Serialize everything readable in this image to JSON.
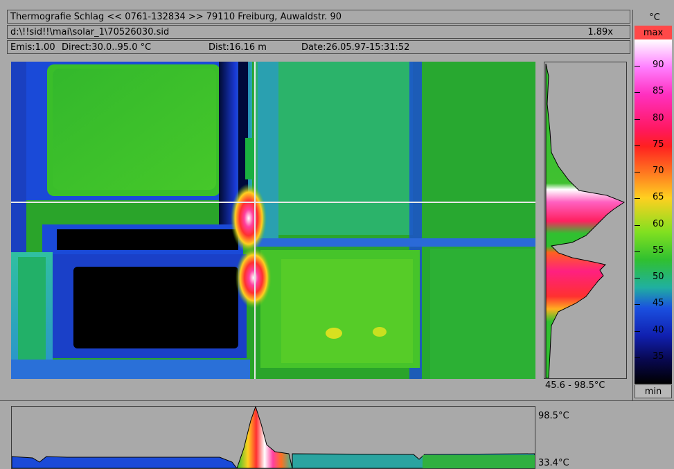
{
  "header": {
    "title": "Thermografie  Schlag  << 0761-132834 >>  79110  Freiburg, Auwaldstr. 90",
    "filepath": "d:\\!!sid!!\\mai\\solar_1\\70526030.sid",
    "zoom": "1.89x",
    "emissivity": "Emis:1.00",
    "direct": "Direct:30.0..95.0 °C",
    "distance": "Dist:16.16 m",
    "date": "Date:26.05.97-15:31:52"
  },
  "histogram": {
    "range_label": "45.6 - 98.5°C"
  },
  "scale": {
    "unit": "°C",
    "max_label": "max",
    "min_label": "min",
    "ticks": [
      "90",
      "85",
      "80",
      "75",
      "70",
      "65",
      "60",
      "55",
      "50",
      "45",
      "40",
      "35"
    ],
    "tick_values": [
      90,
      85,
      80,
      75,
      70,
      65,
      60,
      55,
      50,
      45,
      40,
      35
    ],
    "range": [
      30,
      95
    ]
  },
  "profile": {
    "max_label": "98.5°C",
    "min_label": "33.4°C"
  },
  "colors": {
    "background": "#a9a9a9",
    "max_badge": "#ff4848",
    "green": "#2fae2a",
    "blue": "#1a40d8",
    "black": "#000000",
    "cursor": "#e8e8e8"
  }
}
